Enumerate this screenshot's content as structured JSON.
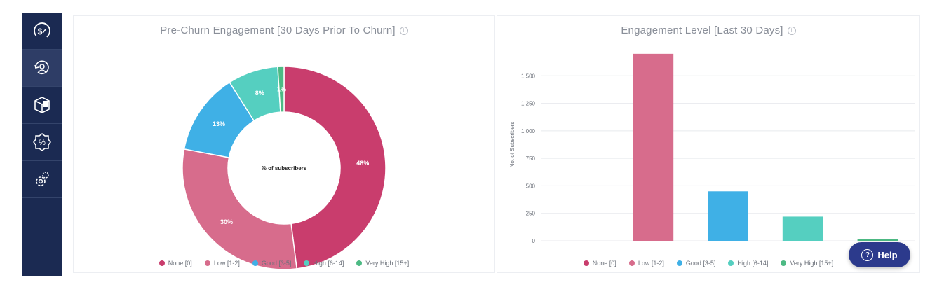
{
  "sidebar": {
    "items": [
      {
        "name": "revenue-gauge-icon"
      },
      {
        "name": "user-refresh-icon"
      },
      {
        "name": "cube-icon"
      },
      {
        "name": "percent-badge-icon"
      },
      {
        "name": "gear-settings-icon"
      }
    ]
  },
  "colors": {
    "none": "#c93d6d",
    "low": "#d76c8c",
    "good": "#3fb0e6",
    "high": "#55cfc0",
    "very_high": "#4dba84"
  },
  "help": {
    "label": "Help"
  },
  "chart_data": [
    {
      "type": "pie",
      "title": "Pre-Churn Engagement [30 Days Prior To Churn]",
      "center_label": "% of subscribers",
      "categories": [
        "None [0]",
        "Low [1-2]",
        "Good [3-5]",
        "High [6-14]",
        "Very High [15+]"
      ],
      "values": [
        48,
        30,
        13,
        8,
        1
      ],
      "labels": [
        "48%",
        "30%",
        "13%",
        "8%",
        "1%"
      ],
      "legend": "bottom"
    },
    {
      "type": "bar",
      "title": "Engagement Level [Last 30 Days]",
      "categories": [
        "None [0]",
        "Low [1-2]",
        "Good [3-5]",
        "High [6-14]",
        "Very High [15+]"
      ],
      "values": [
        0,
        1700,
        450,
        220,
        15
      ],
      "ylabel": "No. of Subscribers",
      "yticks": [
        0,
        250,
        500,
        750,
        1000,
        1250,
        1500
      ],
      "ytick_labels": [
        "0",
        "250",
        "500",
        "750",
        "1,000",
        "1,250",
        "1,500"
      ],
      "ylim": [
        0,
        1750
      ],
      "grid": true,
      "legend": "bottom"
    }
  ]
}
